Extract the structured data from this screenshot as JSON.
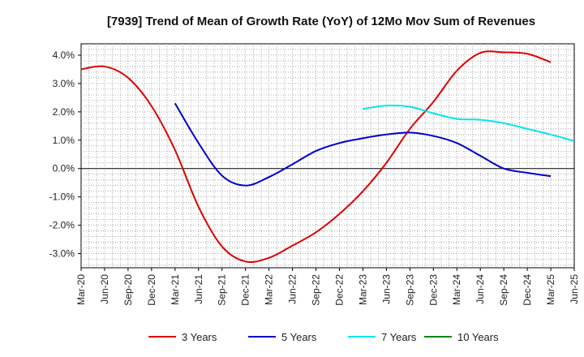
{
  "chart_data": {
    "type": "line",
    "title": "[7939]  Trend of Mean of Growth Rate (YoY) of 12Mo Mov Sum of Revenues",
    "xlabel": "",
    "ylabel": "",
    "ylim": [
      -3.5,
      4.4
    ],
    "yticks": [
      4.0,
      3.0,
      2.0,
      1.0,
      0.0,
      -1.0,
      -2.0,
      -3.0
    ],
    "ytick_labels": [
      "4.0%",
      "3.0%",
      "2.0%",
      "1.0%",
      "0.0%",
      "-1.0%",
      "-2.0%",
      "-3.0%"
    ],
    "x_categories": [
      "Mar-20",
      "Jun-20",
      "Sep-20",
      "Dec-20",
      "Mar-21",
      "Jun-21",
      "Sep-21",
      "Dec-21",
      "Mar-22",
      "Jun-22",
      "Sep-22",
      "Dec-22",
      "Mar-23",
      "Jun-23",
      "Sep-23",
      "Dec-23",
      "Mar-24",
      "Jun-24",
      "Sep-24",
      "Dec-24",
      "Mar-25",
      "Jun-25"
    ],
    "grid": true,
    "legend_position": "bottom",
    "series": [
      {
        "name": "3 Years",
        "color": "#dd0000",
        "start_index": 0,
        "values": [
          3.5,
          3.6,
          3.2,
          2.2,
          0.65,
          -1.35,
          -2.75,
          -3.28,
          -3.15,
          -2.72,
          -2.25,
          -1.6,
          -0.8,
          0.2,
          1.4,
          2.35,
          3.45,
          4.08,
          4.1,
          4.05,
          3.75
        ]
      },
      {
        "name": "5 Years",
        "color": "#0000cc",
        "start_index": 4,
        "values": [
          2.3,
          0.9,
          -0.25,
          -0.6,
          -0.3,
          0.15,
          0.62,
          0.9,
          1.07,
          1.2,
          1.27,
          1.15,
          0.9,
          0.45,
          0.0,
          -0.15,
          -0.27
        ]
      },
      {
        "name": "7 Years",
        "color": "#00e5ee",
        "start_index": 12,
        "values": [
          2.1,
          2.22,
          2.18,
          1.95,
          1.75,
          1.72,
          1.6,
          1.4,
          1.2,
          0.97
        ]
      },
      {
        "name": "10 Years",
        "color": "#008800",
        "start_index": 0,
        "values": []
      }
    ]
  }
}
